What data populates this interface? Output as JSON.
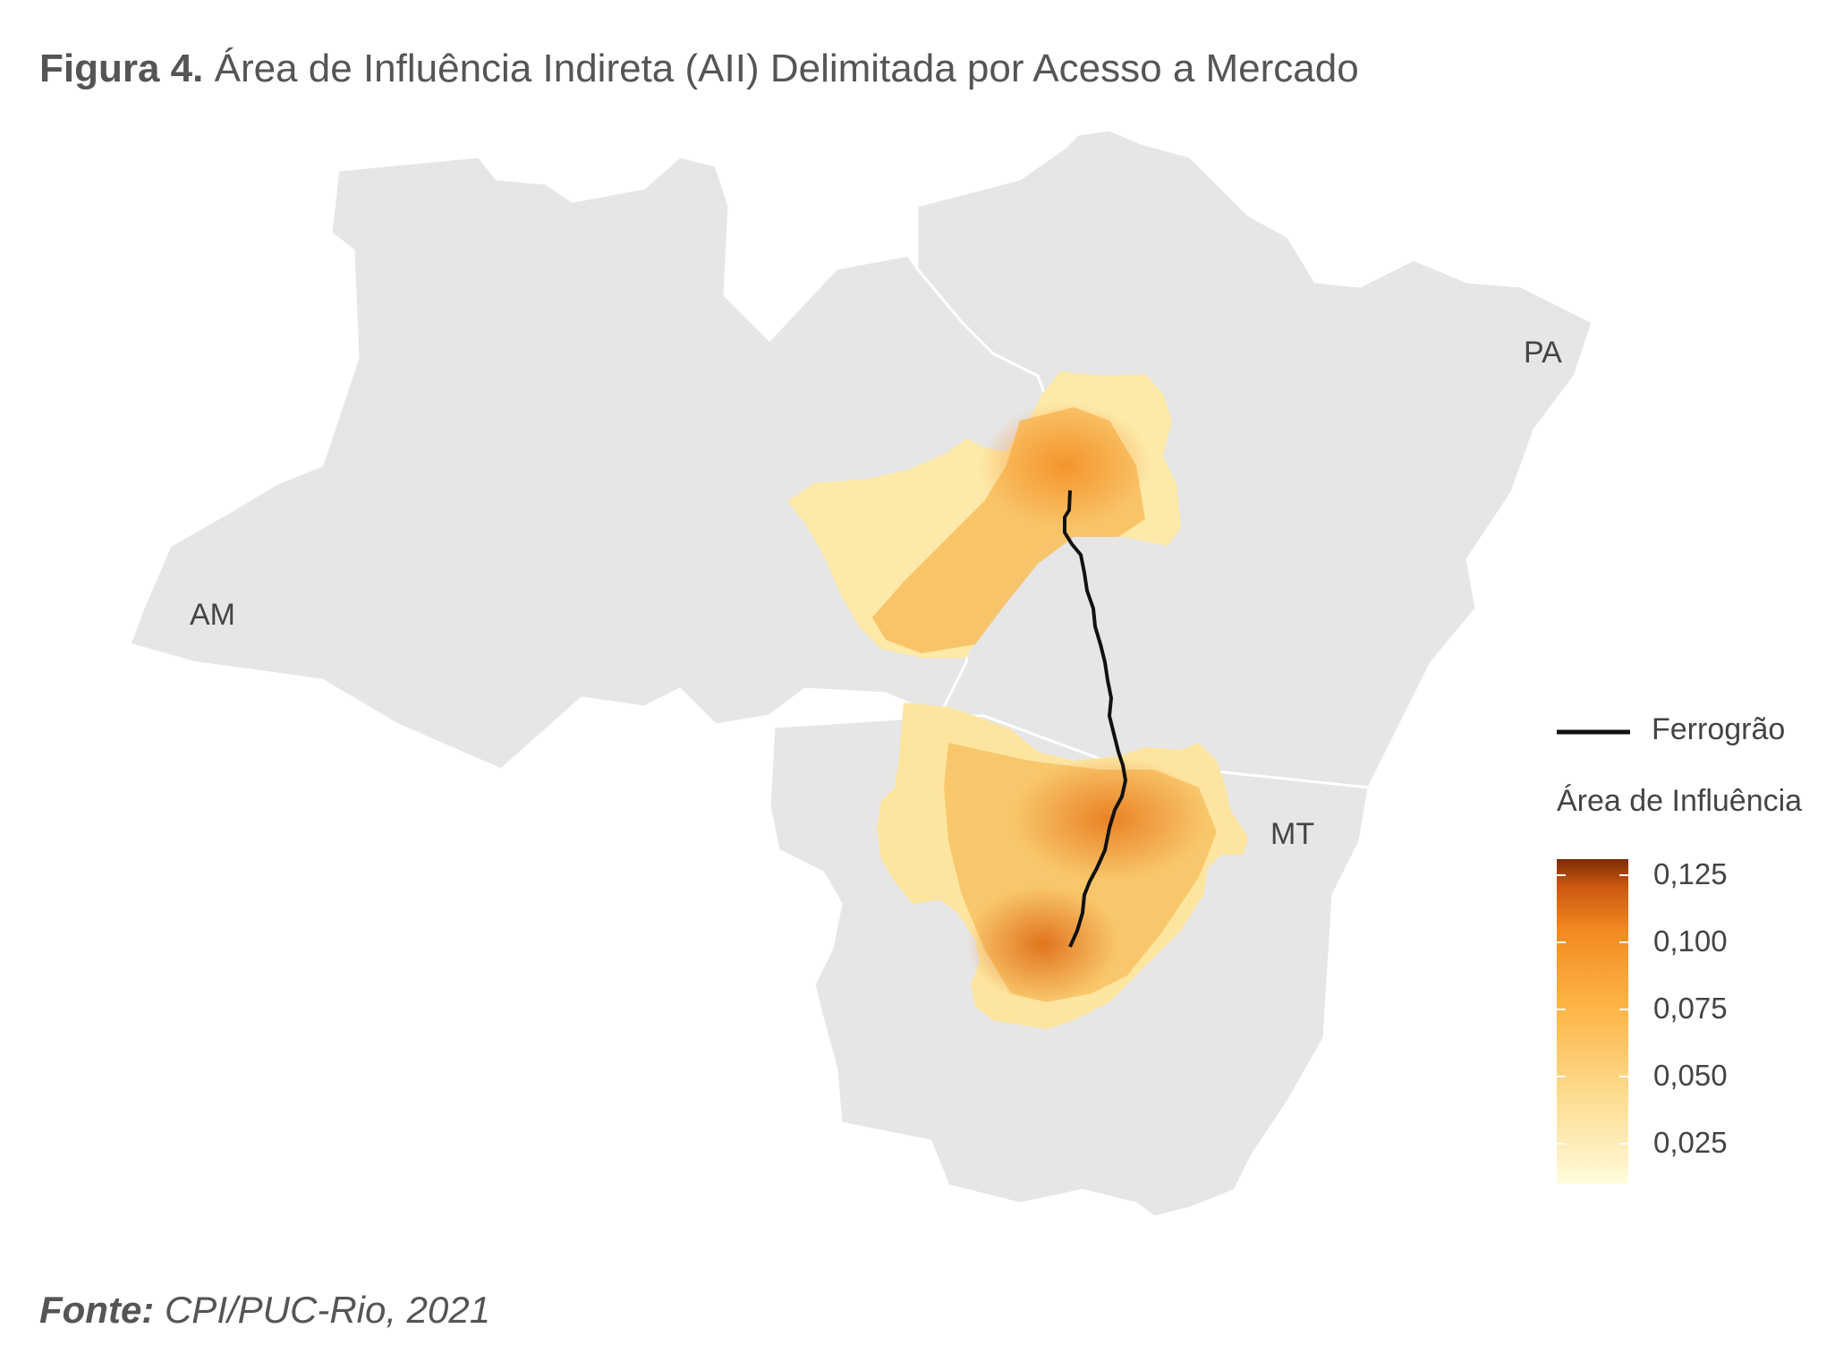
{
  "title": {
    "figure_number": "Figura 4.",
    "text": "Área de Influência Indireta (AII) Delimitada por Acesso a Mercado"
  },
  "states": [
    {
      "abbr": "AM"
    },
    {
      "abbr": "PA"
    },
    {
      "abbr": "MT"
    }
  ],
  "legend": {
    "line_label": "Ferrogrão",
    "fill_title": "Área de Influência",
    "ticks": [
      "0,125",
      "0,100",
      "0,075",
      "0,050",
      "0,025"
    ],
    "scale_values": [
      0.125,
      0.1,
      0.075,
      0.05,
      0.025
    ],
    "colors": {
      "low": "#fffbdc",
      "mid": "#fdbb4a",
      "high": "#f08a1e",
      "max": "#7a2a06",
      "railway": "#111111",
      "land": "#e6e6e6",
      "border": "#ffffff"
    }
  },
  "source": {
    "label": "Fonte:",
    "text": "CPI/PUC-Rio, 2021"
  }
}
